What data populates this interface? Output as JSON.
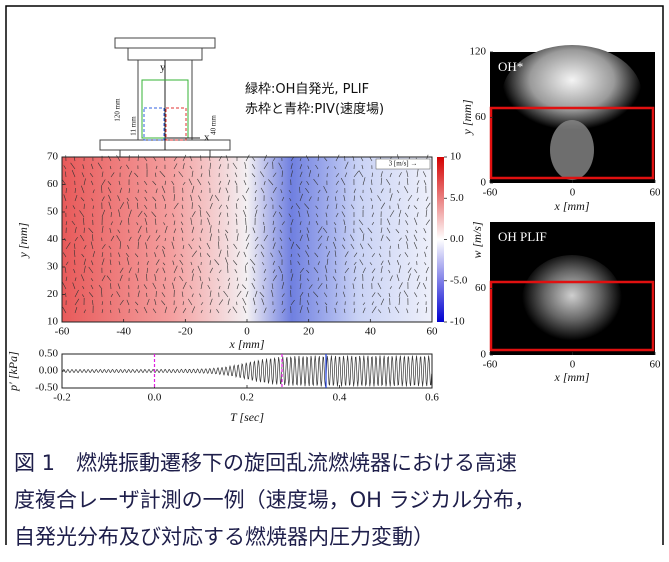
{
  "legend": {
    "lines": [
      "緑枠:OH自発光, PLIF",
      "赤枠と青枠:PIV(速度場)"
    ]
  },
  "schematic": {
    "labels": [
      "y",
      "x",
      "120 mm",
      "11 mm",
      "40 mm"
    ]
  },
  "velocity_field": {
    "xlabel": "x [mm]",
    "ylabel": "y [mm]",
    "scale_label": "3 [m/s] →",
    "xlim": [
      -60,
      60
    ],
    "xticks": [
      -60,
      -40,
      -20,
      0,
      20,
      40,
      60
    ],
    "ylim": [
      10,
      70
    ],
    "yticks": [
      10,
      20,
      30,
      40,
      50,
      60,
      70
    ],
    "colorbar": {
      "label": "w [m/s]",
      "lim": [
        -10,
        10
      ],
      "ticks": [
        10,
        {
          "value": 5,
          "label": "5.0"
        },
        {
          "value": 0,
          "label": "0.0"
        },
        {
          "value": -5,
          "label": "-5.0"
        },
        -10
      ]
    }
  },
  "pressure": {
    "xlabel": "T [sec]",
    "ylabel": "p′ [kPa]",
    "xlim": [
      -0.2,
      0.6
    ],
    "xticks": [
      -0.2,
      {
        "value": 0,
        "label": "0.0"
      },
      0.2,
      0.4,
      0.6
    ],
    "ylim": [
      -0.5,
      0.5
    ],
    "yticks": [
      {
        "value": 0.5,
        "label": "0.50"
      },
      {
        "value": 0,
        "label": "0.00"
      },
      {
        "value": -0.5,
        "label": "-0.50"
      }
    ]
  },
  "oh_star": {
    "title": "OH*",
    "xlabel": "x [mm]",
    "ylabel": "y [mm]",
    "xlim": [
      -60,
      60
    ],
    "xticks": [
      -60,
      0,
      60
    ],
    "ylim": [
      0,
      120
    ],
    "yticks": [
      0,
      60,
      120
    ]
  },
  "oh_plif": {
    "title": "OH PLIF",
    "xlabel": "x [mm]",
    "xlim": [
      -60,
      60
    ],
    "xticks": [
      -60,
      0,
      60
    ],
    "ylim": [
      0,
      120
    ],
    "yticks": [
      0,
      60
    ]
  },
  "caption": {
    "lines": [
      "図 1　燃焼振動遷移下の旋回乱流燃焼器における高速",
      "度複合レーザ計測の一例（速度場，OH ラジカル分布，",
      "自発光分布及び対応する燃焼器内圧力変動）"
    ]
  }
}
